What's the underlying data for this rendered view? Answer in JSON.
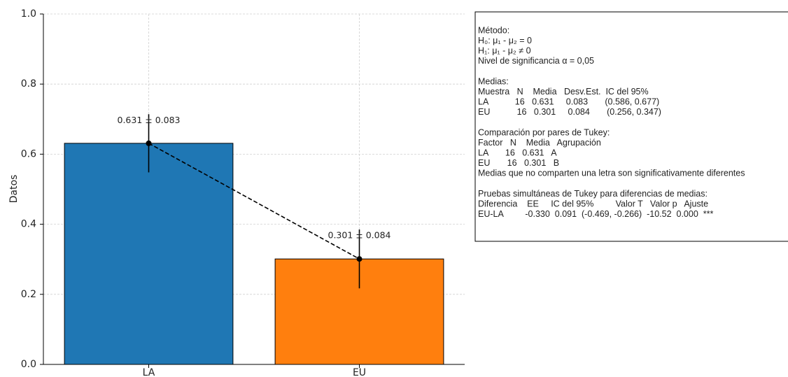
{
  "chart_data": {
    "type": "bar",
    "y_label": "Datos",
    "categories": [
      "LA",
      "EU"
    ],
    "values": [
      0.631,
      0.301
    ],
    "errors": [
      0.083,
      0.084
    ],
    "value_labels": [
      "0.631 ± 0.083",
      "0.301 ± 0.084"
    ],
    "colors": [
      "#1f77b4",
      "#ff7f0e"
    ],
    "ylim": [
      0,
      1
    ],
    "yticks": [
      {
        "value": 0,
        "label": "0.0"
      },
      0.2,
      0.4,
      0.6,
      0.8,
      {
        "value": 1,
        "label": "1.0"
      }
    ],
    "grid": true
  },
  "stats_box": {
    "blocks": [
      [
        "Método:",
        "H₀: μ₁ - μ₂ = 0",
        "H₁: μ₁ - μ₂ ≠ 0",
        "Nivel de significancia α = 0,05"
      ],
      [
        "Medias:",
        "Muestra   N    Media   Desv.Est.  IC del 95%",
        "LA           16   0.631     0.083       (0.586, 0.677)",
        "EU           16   0.301     0.084       (0.256, 0.347)"
      ],
      [
        "Comparación por pares de Tukey:",
        "Factor   N    Media   Agrupación",
        "LA       16   0.631   A",
        "EU       16   0.301   B",
        "Medias que no comparten una letra son significativamente diferentes"
      ],
      [
        "Pruebas simultáneas de Tukey para diferencias de medias:",
        "Diferencia    EE     IC del 95%         Valor T   Valor p   Ajuste",
        "EU-LA         -0.330  0.091  (-0.469, -0.266)  -10.52  0.000  ***"
      ]
    ]
  }
}
